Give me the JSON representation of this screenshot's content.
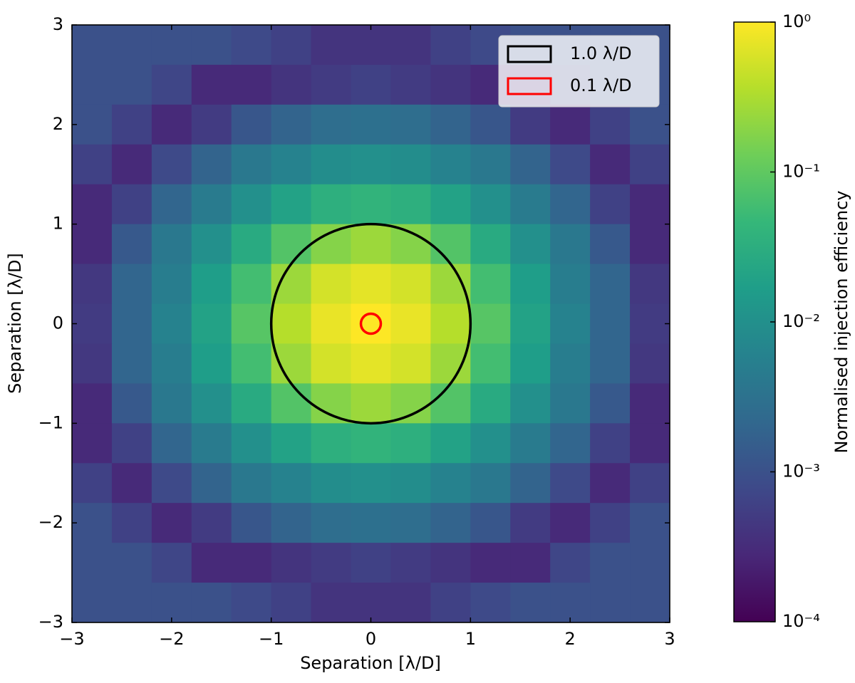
{
  "chart_data": {
    "type": "heatmap",
    "xlabel": "Separation [λ/D]",
    "ylabel": "Separation [λ/D]",
    "colorbar_label": "Normalised injection efficiency",
    "colormap": "viridis",
    "zscale": "log",
    "xlim": [
      -3,
      3
    ],
    "ylim": [
      -3,
      3
    ],
    "xticks": [
      {
        "value": -3,
        "label": "−3"
      },
      {
        "value": -2,
        "label": "−2"
      },
      {
        "value": -1,
        "label": "−1"
      },
      0,
      1,
      2,
      3
    ],
    "yticks": [
      {
        "value": -3,
        "label": "−3"
      },
      {
        "value": -2,
        "label": "−2"
      },
      {
        "value": -1,
        "label": "−1"
      },
      0,
      1,
      2,
      3
    ],
    "zlim": [
      0.0001,
      1
    ],
    "zticks": [
      {
        "value": 1,
        "label": "10⁰"
      },
      {
        "value": 0.1,
        "label": "10⁻¹"
      },
      {
        "value": 0.01,
        "label": "10⁻²"
      },
      {
        "value": 0.001,
        "label": "10⁻³"
      },
      {
        "value": 0.0001,
        "label": "10⁻⁴"
      }
    ],
    "x": [
      -2.8,
      -2.4,
      -2.0,
      -1.6,
      -1.2,
      -0.8,
      -0.4,
      0,
      0.4,
      0.8,
      1.2,
      1.6,
      2.0,
      2.4,
      2.8
    ],
    "y": [
      2.8,
      2.4,
      2.0,
      1.6,
      1.2,
      0.8,
      0.4,
      0,
      -0.4,
      -0.8,
      -1.2,
      -1.6,
      -2.0,
      -2.4,
      -2.8
    ],
    "z": [
      [
        0.001,
        0.001,
        0.001,
        0.001,
        0.0008,
        0.0006,
        0.0004,
        0.0004,
        0.0004,
        0.0006,
        0.0008,
        0.001,
        0.001,
        0.001,
        0.001
      ],
      [
        0.001,
        0.001,
        0.0007,
        0.0003,
        0.0003,
        0.0004,
        0.0005,
        0.0006,
        0.0005,
        0.0004,
        0.0003,
        0.0003,
        0.0007,
        0.001,
        0.001
      ],
      [
        0.001,
        0.0006,
        0.0003,
        0.0005,
        0.0012,
        0.0019,
        0.0027,
        0.003,
        0.0027,
        0.0019,
        0.0012,
        0.0005,
        0.0003,
        0.0006,
        0.001
      ],
      [
        0.0006,
        0.0003,
        0.0008,
        0.0019,
        0.004,
        0.006,
        0.009,
        0.01,
        0.009,
        0.006,
        0.004,
        0.0019,
        0.0008,
        0.0003,
        0.0006
      ],
      [
        0.0003,
        0.0006,
        0.002,
        0.0046,
        0.01,
        0.02,
        0.033,
        0.04,
        0.033,
        0.02,
        0.01,
        0.0046,
        0.002,
        0.0006,
        0.0003
      ],
      [
        0.0003,
        0.0013,
        0.004,
        0.01,
        0.027,
        0.08,
        0.18,
        0.25,
        0.18,
        0.08,
        0.027,
        0.01,
        0.004,
        0.0013,
        0.0003
      ],
      [
        0.00045,
        0.002,
        0.005,
        0.017,
        0.06,
        0.25,
        0.55,
        0.7,
        0.55,
        0.25,
        0.06,
        0.017,
        0.005,
        0.002,
        0.00045
      ],
      [
        0.0005,
        0.002,
        0.006,
        0.02,
        0.085,
        0.36,
        0.75,
        1,
        0.75,
        0.36,
        0.085,
        0.02,
        0.006,
        0.002,
        0.0005
      ],
      [
        0.00045,
        0.002,
        0.005,
        0.017,
        0.06,
        0.25,
        0.55,
        0.7,
        0.55,
        0.25,
        0.06,
        0.017,
        0.005,
        0.002,
        0.00045
      ],
      [
        0.0003,
        0.0013,
        0.004,
        0.01,
        0.027,
        0.08,
        0.18,
        0.25,
        0.18,
        0.08,
        0.027,
        0.01,
        0.004,
        0.0013,
        0.0003
      ],
      [
        0.0003,
        0.0006,
        0.002,
        0.0046,
        0.01,
        0.02,
        0.033,
        0.04,
        0.033,
        0.02,
        0.01,
        0.0046,
        0.002,
        0.0006,
        0.0003
      ],
      [
        0.0006,
        0.0003,
        0.0008,
        0.0019,
        0.004,
        0.006,
        0.009,
        0.01,
        0.009,
        0.006,
        0.004,
        0.0019,
        0.0008,
        0.0003,
        0.0006
      ],
      [
        0.001,
        0.0006,
        0.0003,
        0.0005,
        0.0012,
        0.0019,
        0.0027,
        0.003,
        0.0027,
        0.0019,
        0.0012,
        0.0005,
        0.0003,
        0.0006,
        0.001
      ],
      [
        0.001,
        0.001,
        0.0007,
        0.0003,
        0.0003,
        0.0004,
        0.0005,
        0.0006,
        0.0005,
        0.0004,
        0.0003,
        0.0003,
        0.0007,
        0.001,
        0.001
      ],
      [
        0.001,
        0.001,
        0.001,
        0.001,
        0.0008,
        0.0006,
        0.0004,
        0.0004,
        0.0004,
        0.0006,
        0.0008,
        0.001,
        0.001,
        0.001,
        0.001
      ]
    ],
    "circles": [
      {
        "label": "1.0 λ/D",
        "radius": 1.0,
        "color": "#000000"
      },
      {
        "label": "0.1 λ/D",
        "radius": 0.1,
        "color": "#ff0000"
      }
    ],
    "legend": "upper right"
  }
}
